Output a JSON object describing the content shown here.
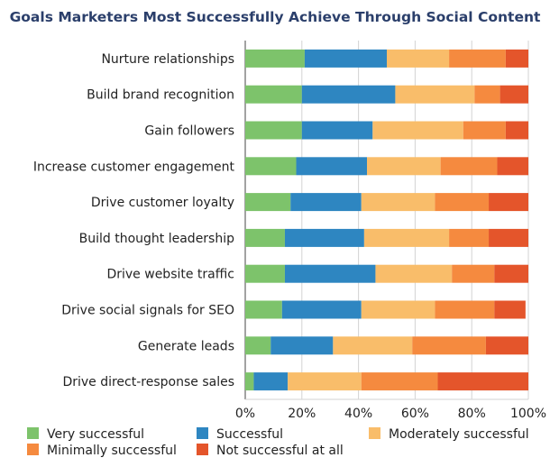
{
  "chart_data": {
    "type": "bar",
    "orientation": "horizontal",
    "stacked": true,
    "title": "Goals Marketers Most Successfully Achieve Through Social Content",
    "categories": [
      "Nurture relationships",
      "Build brand recognition",
      "Gain followers",
      "Increase customer engagement",
      "Drive customer loyalty",
      "Build thought leadership",
      "Drive website traffic",
      "Drive social signals for SEO",
      "Generate leads",
      "Drive direct-response sales"
    ],
    "series": [
      {
        "name": "Very successful",
        "color": "#7dc36b",
        "values": [
          21,
          20,
          20,
          18,
          16,
          14,
          14,
          13,
          9,
          3
        ]
      },
      {
        "name": "Successful",
        "color": "#2e86c1",
        "values": [
          29,
          33,
          25,
          25,
          25,
          28,
          32,
          28,
          22,
          12
        ]
      },
      {
        "name": "Moderately successful",
        "color": "#f9bd6a",
        "values": [
          22,
          28,
          32,
          26,
          26,
          30,
          27,
          26,
          28,
          26
        ]
      },
      {
        "name": "Minimally successful",
        "color": "#f58a3f",
        "values": [
          20,
          9,
          15,
          20,
          19,
          14,
          15,
          21,
          26,
          27
        ]
      },
      {
        "name": "Not successful at all",
        "color": "#e4552b",
        "values": [
          8,
          10,
          8,
          11,
          14,
          14,
          12,
          11,
          15,
          32
        ]
      }
    ],
    "x_ticks": [
      "0%",
      "20%",
      "40%",
      "60%",
      "80%",
      "100%"
    ],
    "xlim": [
      0,
      100
    ],
    "grid": true,
    "legend_position": "bottom"
  }
}
